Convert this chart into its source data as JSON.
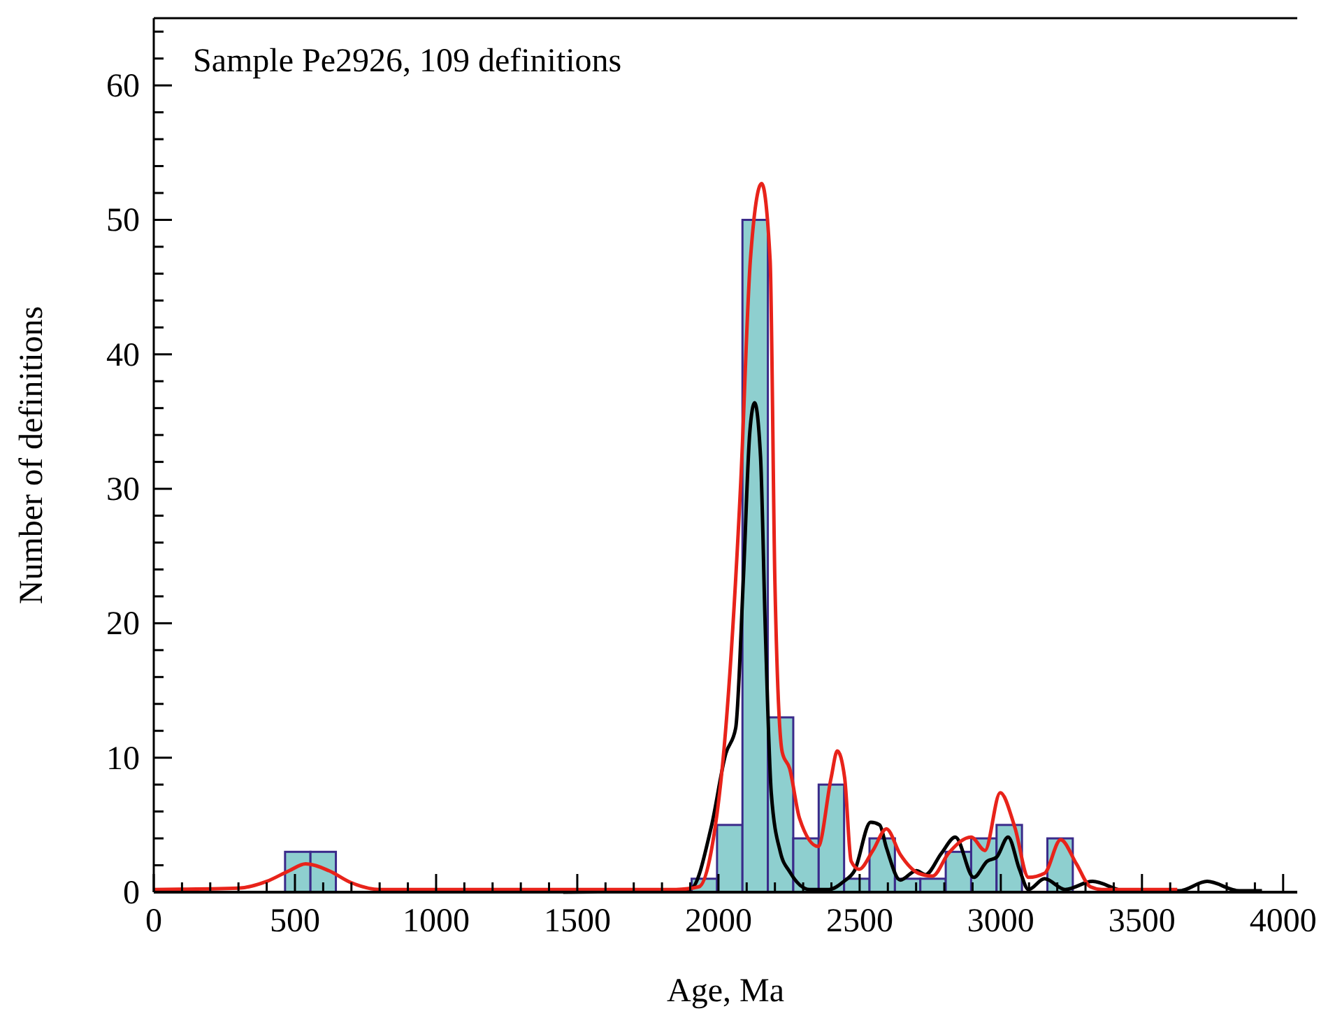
{
  "chart_data": {
    "type": "histogram",
    "xlabel": "Age, Ma",
    "ylabel": "Number of definitions",
    "annotations": [
      "Sample Pe2926, 109 definitions"
    ],
    "bins": [
      465,
      555,
      645,
      735,
      825,
      915,
      1005,
      1095,
      1185,
      1275,
      1365,
      1455,
      1545,
      1635,
      1725,
      1815,
      1905,
      1995,
      2085,
      2175,
      2265,
      2355,
      2445,
      2535,
      2625,
      2715,
      2805,
      2895,
      2985,
      3075,
      3165,
      3255
    ],
    "values": [
      3,
      3,
      0,
      0,
      0,
      0,
      0,
      0,
      0,
      0,
      0,
      0,
      0,
      0,
      0,
      0,
      1,
      5,
      50,
      13,
      4,
      8,
      1,
      4,
      1,
      1,
      3,
      4,
      5,
      0,
      4
    ],
    "color": "#8ecfcf",
    "series": [
      {
        "type": "line",
        "color": "#000000",
        "x": [
          1450,
          1850,
          1905,
          1974,
          2026,
          2061,
          2088,
          2111,
          2128,
          2149,
          2166,
          2187,
          2219,
          2253,
          2323,
          2392,
          2444,
          2482,
          2539,
          2571,
          2595,
          2644,
          2701,
          2733,
          2790,
          2839,
          2904,
          2952,
          2985,
          3026,
          3066,
          3098,
          3155,
          3228,
          3325,
          3439,
          3633,
          3731,
          3844,
          3925
        ],
        "values": [
          0,
          0.1,
          0.3,
          4.8,
          10.3,
          12.2,
          23.2,
          34.2,
          36.4,
          32.4,
          19.5,
          7.4,
          3,
          1.5,
          0.2,
          0.2,
          0.8,
          1.6,
          5.2,
          5,
          3.3,
          0.9,
          1.6,
          1.3,
          2.9,
          4.1,
          1.1,
          2.3,
          2.6,
          4.1,
          1.7,
          0.2,
          1,
          0.2,
          0.8,
          0.1,
          0.1,
          0.8,
          0.1,
          0.1
        ]
      },
      {
        "type": "line",
        "color": "#e8231a",
        "x": [
          0,
          300,
          400,
          480,
          538,
          620,
          700,
          800,
          1850,
          1931,
          1974,
          2026,
          2079,
          2113,
          2153,
          2183,
          2200,
          2226,
          2252,
          2287,
          2353,
          2399,
          2421,
          2447,
          2470,
          2498,
          2547,
          2595,
          2644,
          2709,
          2758,
          2815,
          2895,
          2944,
          2998,
          3050,
          3098,
          3155,
          3212,
          3268,
          3317,
          3358,
          3625
        ],
        "values": [
          0.2,
          0.3,
          0.8,
          1.6,
          2.1,
          1.6,
          0.7,
          0.2,
          0.2,
          0.4,
          3,
          12.2,
          30.5,
          47,
          52.7,
          47,
          23,
          10.4,
          9.2,
          5.5,
          3.4,
          8.5,
          10.5,
          8.5,
          2.3,
          1.7,
          3.1,
          4.7,
          2.8,
          1.4,
          1.2,
          2.9,
          4.1,
          3.1,
          7.4,
          4.8,
          1.1,
          1.4,
          3.9,
          2.1,
          0.4,
          0.2,
          0.2
        ]
      }
    ],
    "xlim": [
      0,
      4050
    ],
    "ylim": [
      0,
      65
    ],
    "xticks": [
      0,
      {
        "value": 100,
        "label": null
      },
      {
        "value": 200,
        "label": null
      },
      {
        "value": 300,
        "label": null
      },
      {
        "value": 400,
        "label": null
      },
      500,
      {
        "value": 600,
        "label": null
      },
      {
        "value": 700,
        "label": null
      },
      {
        "value": 800,
        "label": null
      },
      {
        "value": 900,
        "label": null
      },
      1000,
      {
        "value": 1100,
        "label": null
      },
      {
        "value": 1200,
        "label": null
      },
      {
        "value": 1300,
        "label": null
      },
      {
        "value": 1400,
        "label": null
      },
      1500,
      {
        "value": 1600,
        "label": null
      },
      {
        "value": 1700,
        "label": null
      },
      {
        "value": 1800,
        "label": null
      },
      {
        "value": 1900,
        "label": null
      },
      2000,
      {
        "value": 2100,
        "label": null
      },
      {
        "value": 2200,
        "label": null
      },
      {
        "value": 2300,
        "label": null
      },
      {
        "value": 2400,
        "label": null
      },
      2500,
      {
        "value": 2600,
        "label": null
      },
      {
        "value": 2700,
        "label": null
      },
      {
        "value": 2800,
        "label": null
      },
      {
        "value": 2900,
        "label": null
      },
      3000,
      {
        "value": 3100,
        "label": null
      },
      {
        "value": 3200,
        "label": null
      },
      {
        "value": 3300,
        "label": null
      },
      {
        "value": 3400,
        "label": null
      },
      3500,
      {
        "value": 3600,
        "label": null
      },
      {
        "value": 3700,
        "label": null
      },
      {
        "value": 3800,
        "label": null
      },
      {
        "value": 3900,
        "label": null
      },
      4000
    ],
    "yticks": [
      0,
      {
        "value": 2,
        "label": null
      },
      {
        "value": 4,
        "label": null
      },
      {
        "value": 6,
        "label": null
      },
      {
        "value": 8,
        "label": null
      },
      10,
      {
        "value": 12,
        "label": null
      },
      {
        "value": 14,
        "label": null
      },
      {
        "value": 16,
        "label": null
      },
      {
        "value": 18,
        "label": null
      },
      20,
      {
        "value": 22,
        "label": null
      },
      {
        "value": 24,
        "label": null
      },
      {
        "value": 26,
        "label": null
      },
      {
        "value": 28,
        "label": null
      },
      30,
      {
        "value": 32,
        "label": null
      },
      {
        "value": 34,
        "label": null
      },
      {
        "value": 36,
        "label": null
      },
      {
        "value": 38,
        "label": null
      },
      40,
      {
        "value": 42,
        "label": null
      },
      {
        "value": 44,
        "label": null
      },
      {
        "value": 46,
        "label": null
      },
      {
        "value": 48,
        "label": null
      },
      50,
      {
        "value": 52,
        "label": null
      },
      {
        "value": 54,
        "label": null
      },
      {
        "value": 56,
        "label": null
      },
      {
        "value": 58,
        "label": null
      },
      60,
      {
        "value": 62,
        "label": null
      },
      {
        "value": 64,
        "label": null
      }
    ],
    "grid": false
  }
}
